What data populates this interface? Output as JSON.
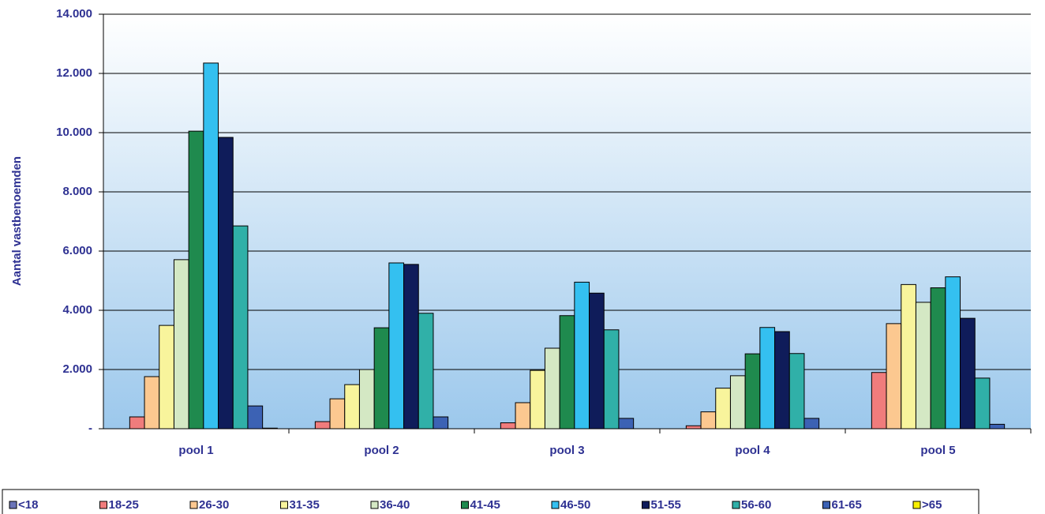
{
  "chart_data": {
    "type": "bar",
    "y_label": "Aantal vastbenoemden",
    "categories": [
      "pool 1",
      "pool 2",
      "pool 3",
      "pool 4",
      "pool 5"
    ],
    "series": [
      {
        "name": "<18",
        "color": "#6b74b8",
        "values": [
          0,
          0,
          0,
          0,
          0
        ]
      },
      {
        "name": "18-25",
        "color": "#f07c7c",
        "values": [
          400,
          240,
          200,
          100,
          1900
        ]
      },
      {
        "name": "26-30",
        "color": "#fcc890",
        "values": [
          1760,
          1010,
          880,
          570,
          3550
        ]
      },
      {
        "name": "31-35",
        "color": "#f8f49c",
        "values": [
          3490,
          1490,
          1970,
          1370,
          4870
        ]
      },
      {
        "name": "36-40",
        "color": "#d4e8c4",
        "values": [
          5710,
          2000,
          2720,
          1790,
          4270
        ]
      },
      {
        "name": "41-45",
        "color": "#1f8a4e",
        "values": [
          10050,
          3410,
          3820,
          2530,
          4760
        ]
      },
      {
        "name": "46-50",
        "color": "#34c0f0",
        "values": [
          12350,
          5600,
          4950,
          3420,
          5130
        ]
      },
      {
        "name": "51-55",
        "color": "#0f1c5a",
        "values": [
          9840,
          5550,
          4580,
          3280,
          3730
        ]
      },
      {
        "name": "56-60",
        "color": "#30b0a8",
        "values": [
          6850,
          3900,
          3340,
          2540,
          1710
        ]
      },
      {
        "name": "61-65",
        "color": "#3c62b4",
        "values": [
          770,
          400,
          350,
          350,
          150
        ]
      },
      {
        "name": ">65",
        "color": "#f8f000",
        "values": [
          20,
          0,
          0,
          0,
          0
        ]
      }
    ],
    "ylim": [
      0,
      14000
    ],
    "yticks": [
      {
        "value": 0,
        "label": "-"
      },
      {
        "value": 2000,
        "label": "2.000"
      },
      {
        "value": 4000,
        "label": "4.000"
      },
      {
        "value": 6000,
        "label": "6.000"
      },
      {
        "value": 8000,
        "label": "8.000"
      },
      {
        "value": 10000,
        "label": "10.000"
      },
      {
        "value": 12000,
        "label": "12.000"
      },
      {
        "value": 14000,
        "label": "14.000"
      }
    ],
    "grid": true,
    "legend": "bottom"
  }
}
